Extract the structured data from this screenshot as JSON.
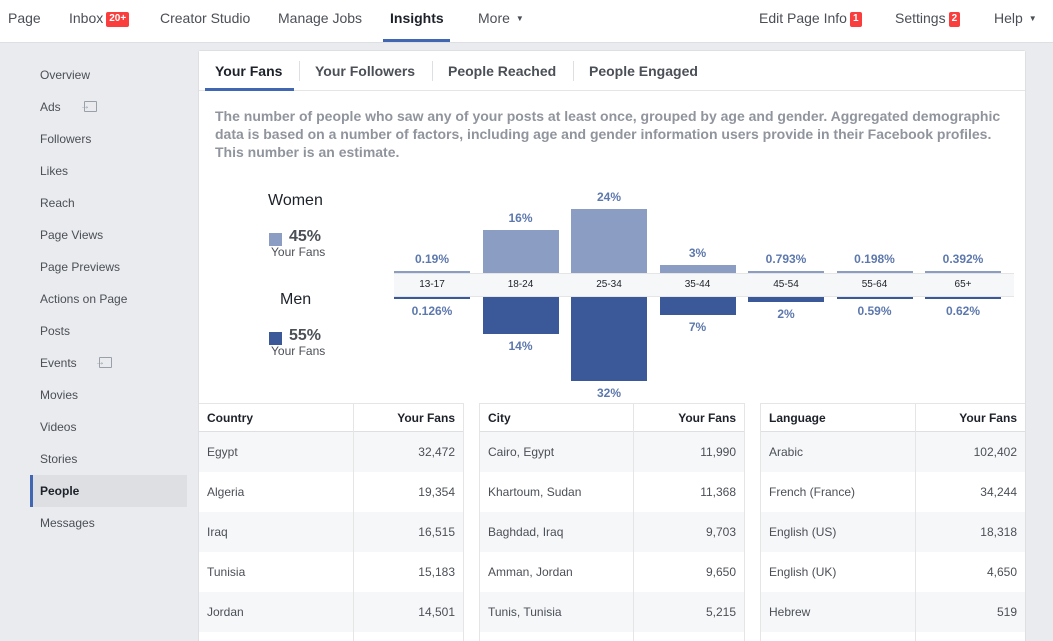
{
  "topnav": {
    "page": "Page",
    "inbox": "Inbox",
    "inbox_badge": "20+",
    "creator_studio": "Creator Studio",
    "manage_jobs": "Manage Jobs",
    "insights": "Insights",
    "more": "More",
    "edit_page_info": "Edit Page Info",
    "edit_page_info_badge": "1",
    "settings": "Settings",
    "settings_badge": "2",
    "help": "Help"
  },
  "sidebar": {
    "items": [
      {
        "label": "Overview"
      },
      {
        "label": "Ads"
      },
      {
        "label": "Followers"
      },
      {
        "label": "Likes"
      },
      {
        "label": "Reach"
      },
      {
        "label": "Page Views"
      },
      {
        "label": "Page Previews"
      },
      {
        "label": "Actions on Page"
      },
      {
        "label": "Posts"
      },
      {
        "label": "Events"
      },
      {
        "label": "Movies"
      },
      {
        "label": "Videos"
      },
      {
        "label": "Stories"
      },
      {
        "label": "People"
      },
      {
        "label": "Messages"
      }
    ]
  },
  "tabs": {
    "your_fans": "Your Fans",
    "your_followers": "Your Followers",
    "people_reached": "People Reached",
    "people_engaged": "People Engaged"
  },
  "description": "The number of people who saw any of your posts at least once, grouped by age and gender. Aggregated demographic data is based on a number of factors, including age and gender information users provide in their Facebook profiles. This number is an estimate.",
  "legend": {
    "women_label": "Women",
    "women_pct": "45%",
    "women_sub": "Your Fans",
    "men_label": "Men",
    "men_pct": "55%",
    "men_sub": "Your Fans"
  },
  "colors": {
    "women": "#8b9dc3",
    "men": "#3b5998",
    "accent": "#4267b2",
    "badge": "#fa3e3e"
  },
  "chart_data": {
    "type": "bar",
    "categories": [
      "13-17",
      "18-24",
      "25-34",
      "35-44",
      "45-54",
      "55-64",
      "65+"
    ],
    "series": [
      {
        "name": "Women",
        "values": [
          0.19,
          16,
          24,
          3,
          0.793,
          0.198,
          0.392
        ],
        "labels": [
          "0.19%",
          "16%",
          "24%",
          "3%",
          "0.793%",
          "0.198%",
          "0.392%"
        ]
      },
      {
        "name": "Men",
        "values": [
          0.126,
          14,
          32,
          7,
          2,
          0.59,
          0.62
        ],
        "labels": [
          "0.126%",
          "14%",
          "32%",
          "7%",
          "2%",
          "0.59%",
          "0.62%"
        ]
      }
    ]
  },
  "tables": {
    "country": {
      "header": [
        "Country",
        "Your Fans"
      ],
      "rows": [
        [
          "Egypt",
          "32,472"
        ],
        [
          "Algeria",
          "19,354"
        ],
        [
          "Iraq",
          "16,515"
        ],
        [
          "Tunisia",
          "15,183"
        ],
        [
          "Jordan",
          "14,501"
        ]
      ]
    },
    "city": {
      "header": [
        "City",
        "Your Fans"
      ],
      "rows": [
        [
          "Cairo, Egypt",
          "11,990"
        ],
        [
          "Khartoum, Sudan",
          "11,368"
        ],
        [
          "Baghdad, Iraq",
          "9,703"
        ],
        [
          "Amman, Jordan",
          "9,650"
        ],
        [
          "Tunis, Tunisia",
          "5,215"
        ]
      ]
    },
    "language": {
      "header": [
        "Language",
        "Your Fans"
      ],
      "rows": [
        [
          "Arabic",
          "102,402"
        ],
        [
          "French (France)",
          "34,244"
        ],
        [
          "English (US)",
          "18,318"
        ],
        [
          "English (UK)",
          "4,650"
        ],
        [
          "Hebrew",
          "519"
        ]
      ]
    }
  }
}
